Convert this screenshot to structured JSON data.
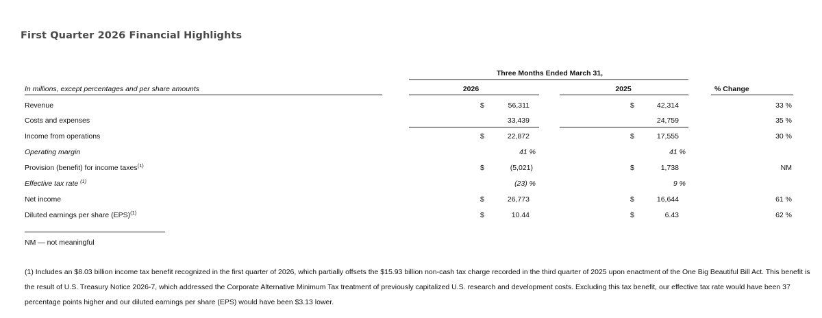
{
  "title": "First Quarter 2026 Financial Highlights",
  "table": {
    "period_header": "Three Months Ended March 31,",
    "units_label": "In millions, except percentages and per share amounts",
    "col_2026": "2026",
    "col_2025": "2025",
    "col_change": "% Change",
    "rows": [
      {
        "label": "Revenue",
        "sup": "",
        "italic": false,
        "d26": "$",
        "v26": "56,311",
        "d25": "$",
        "v25": "42,314",
        "chg": "33 %"
      },
      {
        "label": "Costs and expenses",
        "sup": "",
        "italic": false,
        "d26": "",
        "v26": "33,439",
        "d25": "",
        "v25": "24,759",
        "chg": "35 %"
      },
      {
        "label": "Income from operations",
        "sup": "",
        "italic": false,
        "d26": "$",
        "v26": "22,872",
        "d25": "$",
        "v25": "17,555",
        "chg": "30 %"
      },
      {
        "label": "Operating margin",
        "sup": "",
        "italic": true,
        "d26": "",
        "v26": "41 %",
        "d25": "",
        "v25": "41 %",
        "chg": ""
      },
      {
        "label": "Provision (benefit) for income taxes",
        "sup": "(1)",
        "italic": false,
        "d26": "$",
        "v26": "(5,021)",
        "d25": "$",
        "v25": "1,738",
        "chg": "NM"
      },
      {
        "label": "Effective tax rate ",
        "sup": "(1)",
        "italic": true,
        "d26": "",
        "v26": "(23) %",
        "d25": "",
        "v25": "9 %",
        "chg": ""
      },
      {
        "label": "Net income",
        "sup": "",
        "italic": false,
        "d26": "$",
        "v26": "26,773",
        "d25": "$",
        "v25": "16,644",
        "chg": "61 %"
      },
      {
        "label": "Diluted earnings per share (EPS)",
        "sup": "(1)",
        "italic": false,
        "d26": "$",
        "v26": "10.44",
        "d25": "$",
        "v25": "6.43",
        "chg": "62 %"
      }
    ]
  },
  "nm_note": "NM — not meaningful",
  "footnote": {
    "line1": "(1) Includes an $8.03 billion income tax benefit recognized in the first quarter of 2026, which partially offsets the $15.93 billion non-cash tax charge recorded in the third quarter of 2025 upon enactment of the One Big Beautiful Bill Act. This benefit is",
    "line2": "the result of U.S. Treasury Notice 2026-7, which addressed the Corporate Alternative Minimum Tax treatment of previously capitalized U.S. research and development costs. Excluding this tax benefit, our effective tax rate would have been 37",
    "line3": "percentage points higher and our diluted earnings per share (EPS) would have been $3.13 lower."
  }
}
